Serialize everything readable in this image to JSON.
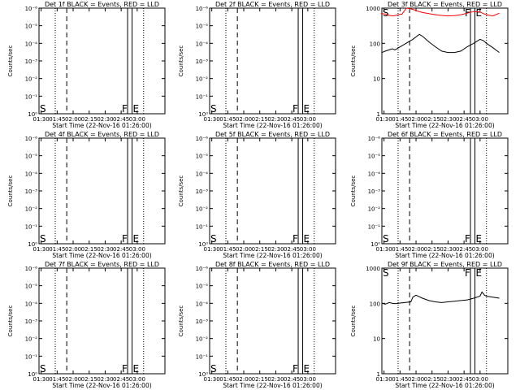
{
  "chart_data": [
    {
      "type": "line",
      "title": "Det 1f BLACK = Events, RED = LLD",
      "xlabel": "Start Time (22-Nov-16 01:26:00)",
      "ylabel": "Counts/sec",
      "x_tick_labels": [
        "01:30",
        "01:45",
        "02:00",
        "02:15",
        "02:30",
        "02:45",
        "03:00"
      ],
      "y_tick_labels": [
        "10⁰",
        "10⁻¹",
        "10⁻²",
        "10⁻³",
        "10⁻⁴",
        "10⁻⁵",
        "10⁻⁶"
      ],
      "ylim": [
        1e-06,
        1
      ],
      "markers": [
        "S",
        "F",
        "E"
      ],
      "series": []
    },
    {
      "type": "line",
      "title": "Det 2f BLACK = Events, RED = LLD",
      "xlabel": "Start Time (22-Nov-16 01:26:00)",
      "ylabel": "Counts/sec",
      "x_tick_labels": [
        "01:30",
        "01:45",
        "02:00",
        "02:15",
        "02:30",
        "02:45",
        "03:00"
      ],
      "y_tick_labels": [
        "10⁰",
        "10⁻¹",
        "10⁻²",
        "10⁻³",
        "10⁻⁴",
        "10⁻⁵",
        "10⁻⁶"
      ],
      "ylim": [
        1e-06,
        1
      ],
      "markers": [
        "S",
        "F",
        "E"
      ],
      "series": []
    },
    {
      "type": "line",
      "title": "Det 3f BLACK = Events, RED = LLD",
      "xlabel": "Start Time (22-Nov-16 01:26:00)",
      "ylabel": "Counts/sec",
      "x_tick_labels": [
        "01:30",
        "01:45",
        "02:00",
        "02:15",
        "02:30",
        "02:45",
        "03:00"
      ],
      "y_tick_labels": [
        "1000",
        "100",
        "10",
        "1"
      ],
      "ylim": [
        1,
        1000
      ],
      "markers": [
        "S",
        "F",
        "E"
      ],
      "series": [
        {
          "color": "#ff0000",
          "x": [
            1.45,
            1.52,
            1.58,
            1.65,
            1.72,
            1.78,
            1.85,
            1.92,
            1.97,
            2.0,
            2.1,
            2.2,
            2.3,
            2.4,
            2.5,
            2.6,
            2.7,
            2.8,
            2.9,
            3.0,
            3.05,
            3.1,
            3.2,
            3.3
          ],
          "y": [
            700,
            680,
            620,
            600,
            650,
            680,
            1000,
            950,
            900,
            850,
            750,
            700,
            650,
            620,
            600,
            610,
            650,
            720,
            800,
            780,
            700,
            650,
            600,
            720
          ]
        },
        {
          "color": "#000000",
          "x": [
            1.47,
            1.52,
            1.58,
            1.63,
            1.67,
            1.95,
            2.05,
            2.1,
            2.2,
            2.3,
            2.4,
            2.5,
            2.6,
            2.7,
            2.8,
            2.9,
            3.0,
            3.05,
            3.1,
            3.2,
            3.3
          ],
          "y": [
            55,
            60,
            65,
            70,
            65,
            130,
            180,
            160,
            110,
            80,
            60,
            55,
            55,
            60,
            80,
            100,
            130,
            120,
            100,
            75,
            55
          ]
        }
      ]
    },
    {
      "type": "line",
      "title": "Det 4f BLACK = Events, RED = LLD",
      "xlabel": "Start Time (22-Nov-16 01:26:00)",
      "ylabel": "Counts/sec",
      "x_tick_labels": [
        "01:30",
        "01:45",
        "02:00",
        "02:15",
        "02:30",
        "02:45",
        "03:00"
      ],
      "y_tick_labels": [
        "10⁰",
        "10⁻¹",
        "10⁻²",
        "10⁻³",
        "10⁻⁴",
        "10⁻⁵",
        "10⁻⁶"
      ],
      "ylim": [
        1e-06,
        1
      ],
      "markers": [
        "S",
        "F",
        "E"
      ],
      "series": []
    },
    {
      "type": "line",
      "title": "Det 5f BLACK = Events, RED = LLD",
      "xlabel": "Start Time (22-Nov-16 01:26:00)",
      "ylabel": "Counts/sec",
      "x_tick_labels": [
        "01:30",
        "01:45",
        "02:00",
        "02:15",
        "02:30",
        "02:45",
        "03:00"
      ],
      "y_tick_labels": [
        "10⁰",
        "10⁻¹",
        "10⁻²",
        "10⁻³",
        "10⁻⁴",
        "10⁻⁵",
        "10⁻⁶"
      ],
      "ylim": [
        1e-06,
        1
      ],
      "markers": [
        "S",
        "F",
        "E"
      ],
      "series": []
    },
    {
      "type": "line",
      "title": "Det 6f BLACK = Events, RED = LLD",
      "xlabel": "Start Time (22-Nov-16 01:26:00)",
      "ylabel": "Counts/sec",
      "x_tick_labels": [
        "01:30",
        "01:45",
        "02:00",
        "02:15",
        "02:30",
        "02:45",
        "03:00"
      ],
      "y_tick_labels": [
        "10⁰",
        "10⁻¹",
        "10⁻²",
        "10⁻³",
        "10⁻⁴",
        "10⁻⁵",
        "10⁻⁶"
      ],
      "ylim": [
        1e-06,
        1
      ],
      "markers": [
        "S",
        "F",
        "E"
      ],
      "series": []
    },
    {
      "type": "line",
      "title": "Det 7f BLACK = Events, RED = LLD",
      "xlabel": "Start Time (22-Nov-16 01:26:00)",
      "ylabel": "Counts/sec",
      "x_tick_labels": [
        "01:30",
        "01:45",
        "02:00",
        "02:15",
        "02:30",
        "02:45",
        "03:00"
      ],
      "y_tick_labels": [
        "10⁰",
        "10⁻¹",
        "10⁻²",
        "10⁻³",
        "10⁻⁴",
        "10⁻⁵",
        "10⁻⁶"
      ],
      "ylim": [
        1e-06,
        1
      ],
      "markers": [
        "S",
        "F",
        "E"
      ],
      "series": []
    },
    {
      "type": "line",
      "title": "Det 8f BLACK = Events, RED = LLD",
      "xlabel": "Start Time (22-Nov-16 01:26:00)",
      "ylabel": "Counts/sec",
      "x_tick_labels": [
        "01:30",
        "01:45",
        "02:00",
        "02:15",
        "02:30",
        "02:45",
        "03:00"
      ],
      "y_tick_labels": [
        "10⁰",
        "10⁻¹",
        "10⁻²",
        "10⁻³",
        "10⁻⁴",
        "10⁻⁵",
        "10⁻⁶"
      ],
      "ylim": [
        1e-06,
        1
      ],
      "markers": [
        "S",
        "F",
        "E"
      ],
      "series": []
    },
    {
      "type": "line",
      "title": "Det 9f BLACK = Events, RED = LLD",
      "xlabel": "Start Time (22-Nov-16 01:26:00)",
      "ylabel": "Counts/sec",
      "x_tick_labels": [
        "01:30",
        "01:45",
        "02:00",
        "02:15",
        "02:30",
        "02:45",
        "03:00"
      ],
      "y_tick_labels": [
        "1000",
        "100",
        "10",
        "1"
      ],
      "ylim": [
        1,
        1000
      ],
      "markers": [
        "S",
        "F",
        "E"
      ],
      "series": [
        {
          "color": "#000000",
          "x": [
            1.47,
            1.52,
            1.58,
            1.63,
            1.67,
            1.92,
            1.95,
            2.0,
            2.1,
            2.2,
            2.3,
            2.4,
            2.5,
            2.6,
            2.7,
            2.8,
            2.9,
            3.0,
            3.03,
            3.07,
            3.1,
            3.2,
            3.3
          ],
          "y": [
            100,
            95,
            105,
            100,
            98,
            110,
            150,
            170,
            140,
            120,
            110,
            105,
            110,
            115,
            120,
            125,
            140,
            160,
            210,
            170,
            160,
            150,
            140
          ]
        }
      ]
    }
  ]
}
